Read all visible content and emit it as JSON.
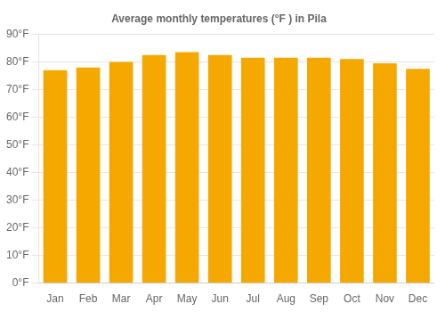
{
  "chart_data": {
    "type": "bar",
    "title": "Average monthly temperatures (°F ) in Pila",
    "categories": [
      "Jan",
      "Feb",
      "Mar",
      "Apr",
      "May",
      "Jun",
      "Jul",
      "Aug",
      "Sep",
      "Oct",
      "Nov",
      "Dec"
    ],
    "values": [
      77,
      78,
      80,
      82.5,
      83.5,
      82.5,
      81.5,
      81.5,
      81.5,
      81,
      79.5,
      77.5
    ],
    "color": "#F5A800",
    "ylim": [
      0,
      90
    ],
    "yticks": [
      {
        "value": 0,
        "label": "0°F"
      },
      {
        "value": 10,
        "label": "10°F"
      },
      {
        "value": 20,
        "label": "20°F"
      },
      {
        "value": 30,
        "label": "30°F"
      },
      {
        "value": 40,
        "label": "40°F"
      },
      {
        "value": 50,
        "label": "50°F"
      },
      {
        "value": 60,
        "label": "60°F"
      },
      {
        "value": 70,
        "label": "70°F"
      },
      {
        "value": 80,
        "label": "80°F"
      },
      {
        "value": 90,
        "label": "90°F"
      }
    ],
    "grid": true
  }
}
